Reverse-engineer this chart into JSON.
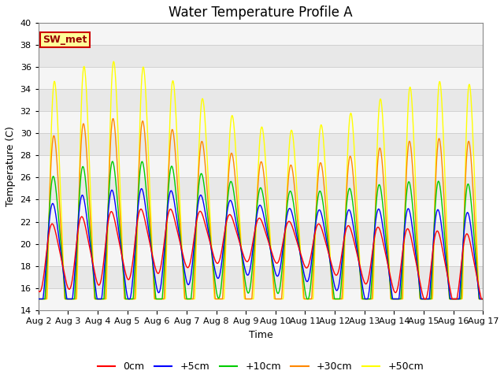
{
  "title": "Water Temperature Profile A",
  "xlabel": "Time",
  "ylabel": "Temperature (C)",
  "ylim": [
    14,
    40
  ],
  "day_labels": [
    "Aug 2",
    "Aug 3",
    "Aug 4",
    "Aug 5",
    "Aug 6",
    "Aug 7",
    "Aug 8",
    "Aug 9",
    "Aug 10",
    "Aug 11",
    "Aug 12",
    "Aug 13",
    "Aug 14",
    "Aug 15",
    "Aug 16",
    "Aug 17"
  ],
  "colors": {
    "0cm": "#ff0000",
    "+5cm": "#0000ff",
    "+10cm": "#00cc00",
    "+30cm": "#ff8800",
    "+50cm": "#ffff00"
  },
  "annotation_text": "SW_met",
  "annotation_bg": "#ffff99",
  "annotation_border": "#cc0000",
  "plot_bg_light": "#f5f5f5",
  "plot_bg_dark": "#e8e8e8",
  "grid_color": "#cccccc",
  "title_fontsize": 12,
  "axis_label_fontsize": 9,
  "tick_label_fontsize": 8,
  "legend_fontsize": 9,
  "line_width": 1.0,
  "n_days": 15
}
